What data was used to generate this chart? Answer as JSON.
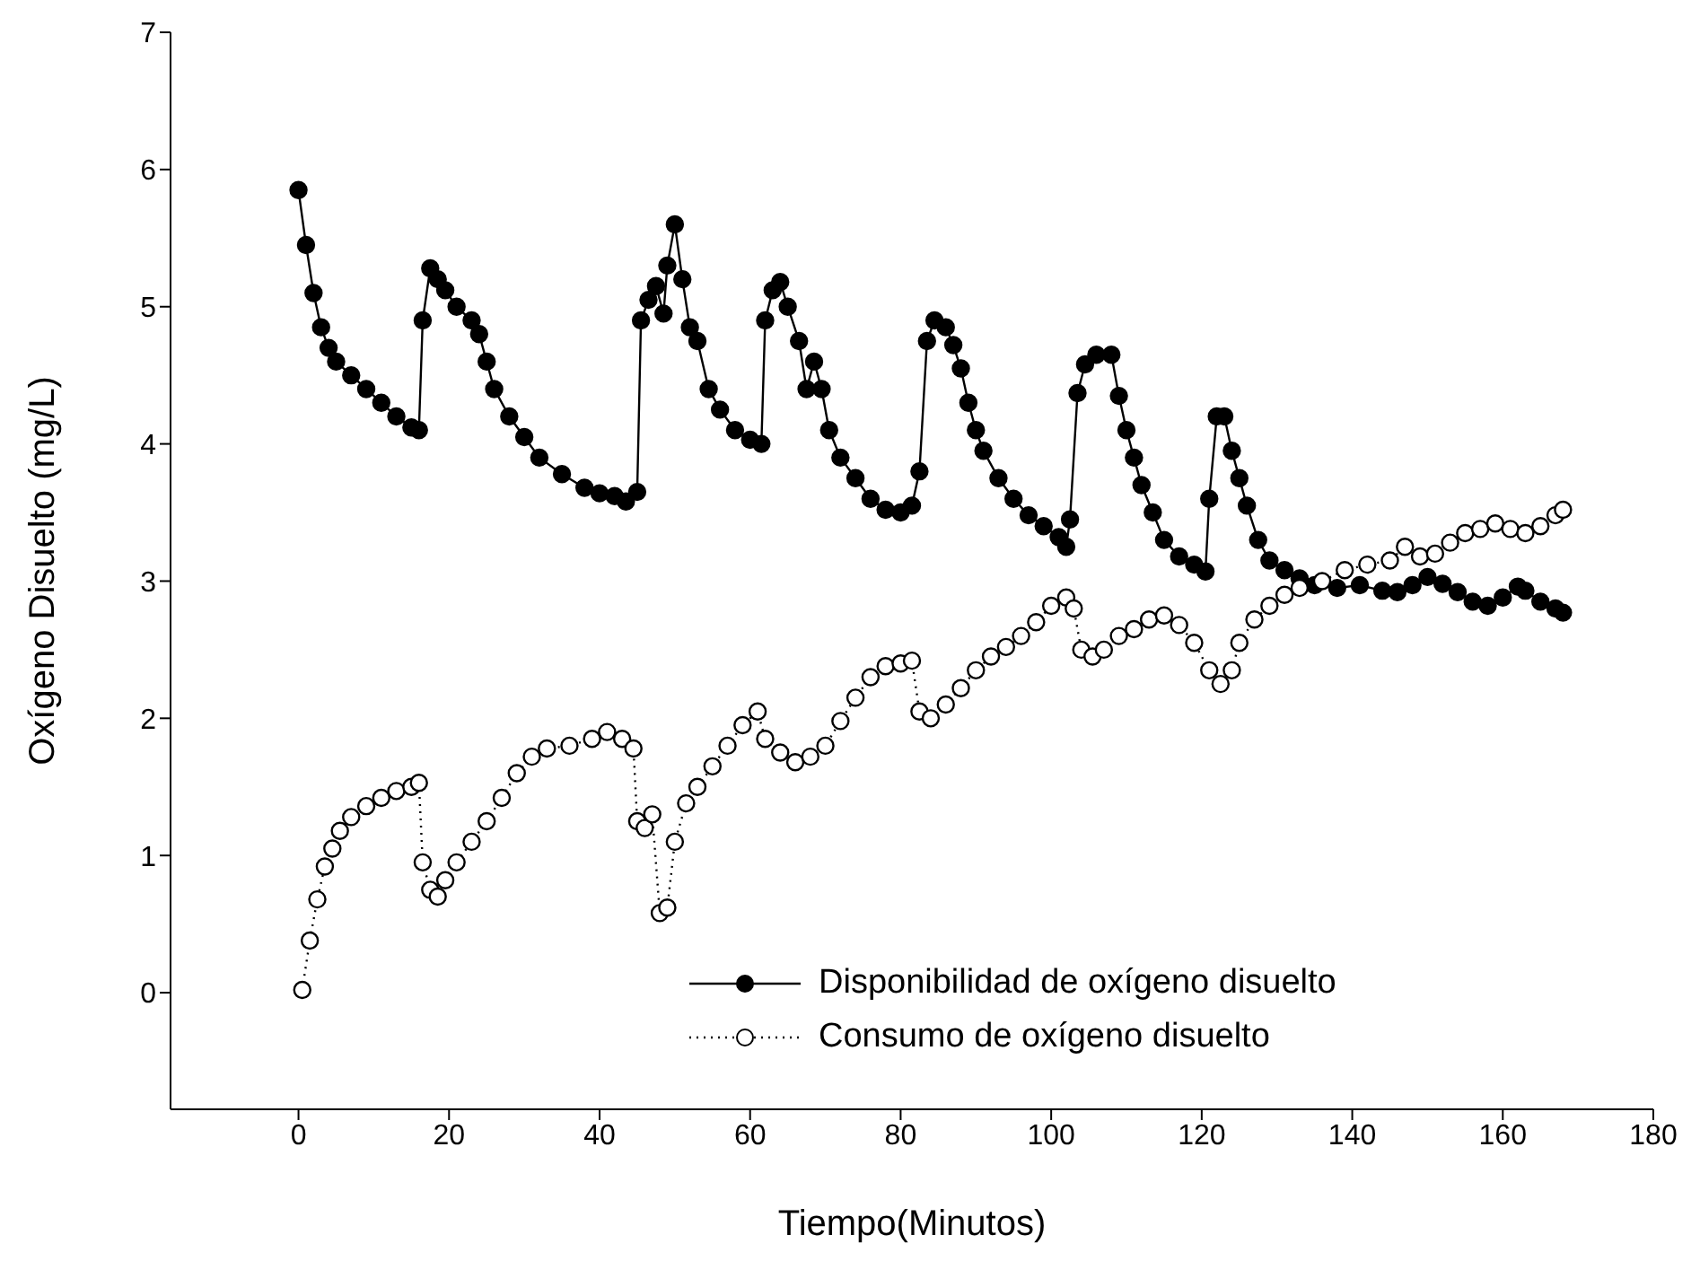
{
  "chart_data": {
    "type": "line",
    "xlabel": "Tiempo(Minutos)",
    "ylabel": "Oxígeno Disuelto (mg/L)",
    "xlim": [
      -17,
      180
    ],
    "ylim": [
      -0.85,
      7
    ],
    "xticks": [
      0,
      20,
      40,
      60,
      80,
      100,
      120,
      140,
      160,
      180
    ],
    "yticks": [
      0,
      1,
      2,
      3,
      4,
      5,
      6,
      7
    ],
    "grid": false,
    "legend": "bottom right",
    "marker": "circle",
    "series": [
      {
        "name": "Disponibilidad de oxígeno disuelto",
        "color": "#000000",
        "line_style": "solid",
        "x": [
          0,
          1,
          2,
          3,
          4,
          5,
          7,
          9,
          11,
          13,
          15,
          16,
          16.5,
          17.5,
          18.5,
          19.5,
          21,
          23,
          24,
          25,
          26,
          28,
          30,
          32,
          35,
          38,
          40,
          42,
          43.5,
          45,
          45.5,
          46.5,
          47.5,
          48.5,
          49,
          50,
          51,
          52,
          53,
          54.5,
          56,
          58,
          60,
          61.5,
          62,
          63,
          64,
          65,
          66.5,
          67.5,
          68.5,
          69.5,
          70.5,
          72,
          74,
          76,
          78,
          80,
          81.5,
          82.5,
          83.5,
          84.5,
          86,
          87,
          88,
          89,
          90,
          91,
          93,
          95,
          97,
          99,
          101,
          102,
          102.5,
          103.5,
          104.5,
          106,
          108,
          109,
          110,
          111,
          112,
          113.5,
          115,
          117,
          119,
          120.5,
          121,
          122,
          123,
          124,
          125,
          126,
          127.5,
          129,
          131,
          133,
          135,
          138,
          141,
          144,
          146,
          148,
          150,
          152,
          154,
          156,
          158,
          160,
          162,
          163,
          165,
          167,
          168
        ],
        "values": [
          5.85,
          5.45,
          5.1,
          4.85,
          4.7,
          4.6,
          4.5,
          4.4,
          4.3,
          4.2,
          4.12,
          4.1,
          4.9,
          5.28,
          5.2,
          5.12,
          5.0,
          4.9,
          4.8,
          4.6,
          4.4,
          4.2,
          4.05,
          3.9,
          3.78,
          3.68,
          3.64,
          3.62,
          3.58,
          3.65,
          4.9,
          5.05,
          5.15,
          4.95,
          5.3,
          5.6,
          5.2,
          4.85,
          4.75,
          4.4,
          4.25,
          4.1,
          4.03,
          4.0,
          4.9,
          5.12,
          5.18,
          5.0,
          4.75,
          4.4,
          4.6,
          4.4,
          4.1,
          3.9,
          3.75,
          3.6,
          3.52,
          3.5,
          3.55,
          3.8,
          4.75,
          4.9,
          4.85,
          4.72,
          4.55,
          4.3,
          4.1,
          3.95,
          3.75,
          3.6,
          3.48,
          3.4,
          3.32,
          3.25,
          3.45,
          4.37,
          4.58,
          4.65,
          4.65,
          4.35,
          4.1,
          3.9,
          3.7,
          3.5,
          3.3,
          3.18,
          3.12,
          3.07,
          3.6,
          4.2,
          4.2,
          3.95,
          3.75,
          3.55,
          3.3,
          3.15,
          3.08,
          3.02,
          2.97,
          2.95,
          2.97,
          2.93,
          2.92,
          2.97,
          3.03,
          2.98,
          2.92,
          2.85,
          2.82,
          2.88,
          2.96,
          2.93,
          2.85,
          2.8,
          2.77
        ]
      },
      {
        "name": "Consumo de oxígeno disuelto",
        "color": "#000000",
        "line_style": "dotted",
        "x": [
          0.5,
          1.5,
          2.5,
          3.5,
          4.5,
          5.5,
          7,
          9,
          11,
          13,
          15,
          16,
          16.5,
          17.5,
          18.5,
          19.5,
          21,
          23,
          25,
          27,
          29,
          31,
          33,
          36,
          39,
          41,
          43,
          44.5,
          45,
          46,
          47,
          48,
          49,
          50,
          51.5,
          53,
          55,
          57,
          59,
          61,
          62,
          64,
          66,
          68,
          70,
          72,
          74,
          76,
          78,
          80,
          81.5,
          82.5,
          84,
          86,
          88,
          90,
          92,
          94,
          96,
          98,
          100,
          102,
          103,
          104,
          105.5,
          107,
          109,
          111,
          113,
          115,
          117,
          119,
          121,
          122.5,
          124,
          125,
          127,
          129,
          131,
          133,
          136,
          139,
          142,
          145,
          147,
          149,
          151,
          153,
          155,
          157,
          159,
          161,
          163,
          165,
          167,
          168
        ],
        "values": [
          0.02,
          0.38,
          0.68,
          0.92,
          1.05,
          1.18,
          1.28,
          1.36,
          1.42,
          1.47,
          1.5,
          1.53,
          0.95,
          0.75,
          0.7,
          0.82,
          0.95,
          1.1,
          1.25,
          1.42,
          1.6,
          1.72,
          1.78,
          1.8,
          1.85,
          1.9,
          1.85,
          1.78,
          1.25,
          1.2,
          1.3,
          0.58,
          0.62,
          1.1,
          1.38,
          1.5,
          1.65,
          1.8,
          1.95,
          2.05,
          1.85,
          1.75,
          1.68,
          1.72,
          1.8,
          1.98,
          2.15,
          2.3,
          2.38,
          2.4,
          2.42,
          2.05,
          2.0,
          2.1,
          2.22,
          2.35,
          2.45,
          2.52,
          2.6,
          2.7,
          2.82,
          2.88,
          2.8,
          2.5,
          2.45,
          2.5,
          2.6,
          2.65,
          2.72,
          2.75,
          2.68,
          2.55,
          2.35,
          2.25,
          2.35,
          2.55,
          2.72,
          2.82,
          2.9,
          2.95,
          3.0,
          3.08,
          3.12,
          3.15,
          3.25,
          3.18,
          3.2,
          3.28,
          3.35,
          3.38,
          3.42,
          3.38,
          3.35,
          3.4,
          3.48,
          3.52
        ]
      }
    ]
  }
}
